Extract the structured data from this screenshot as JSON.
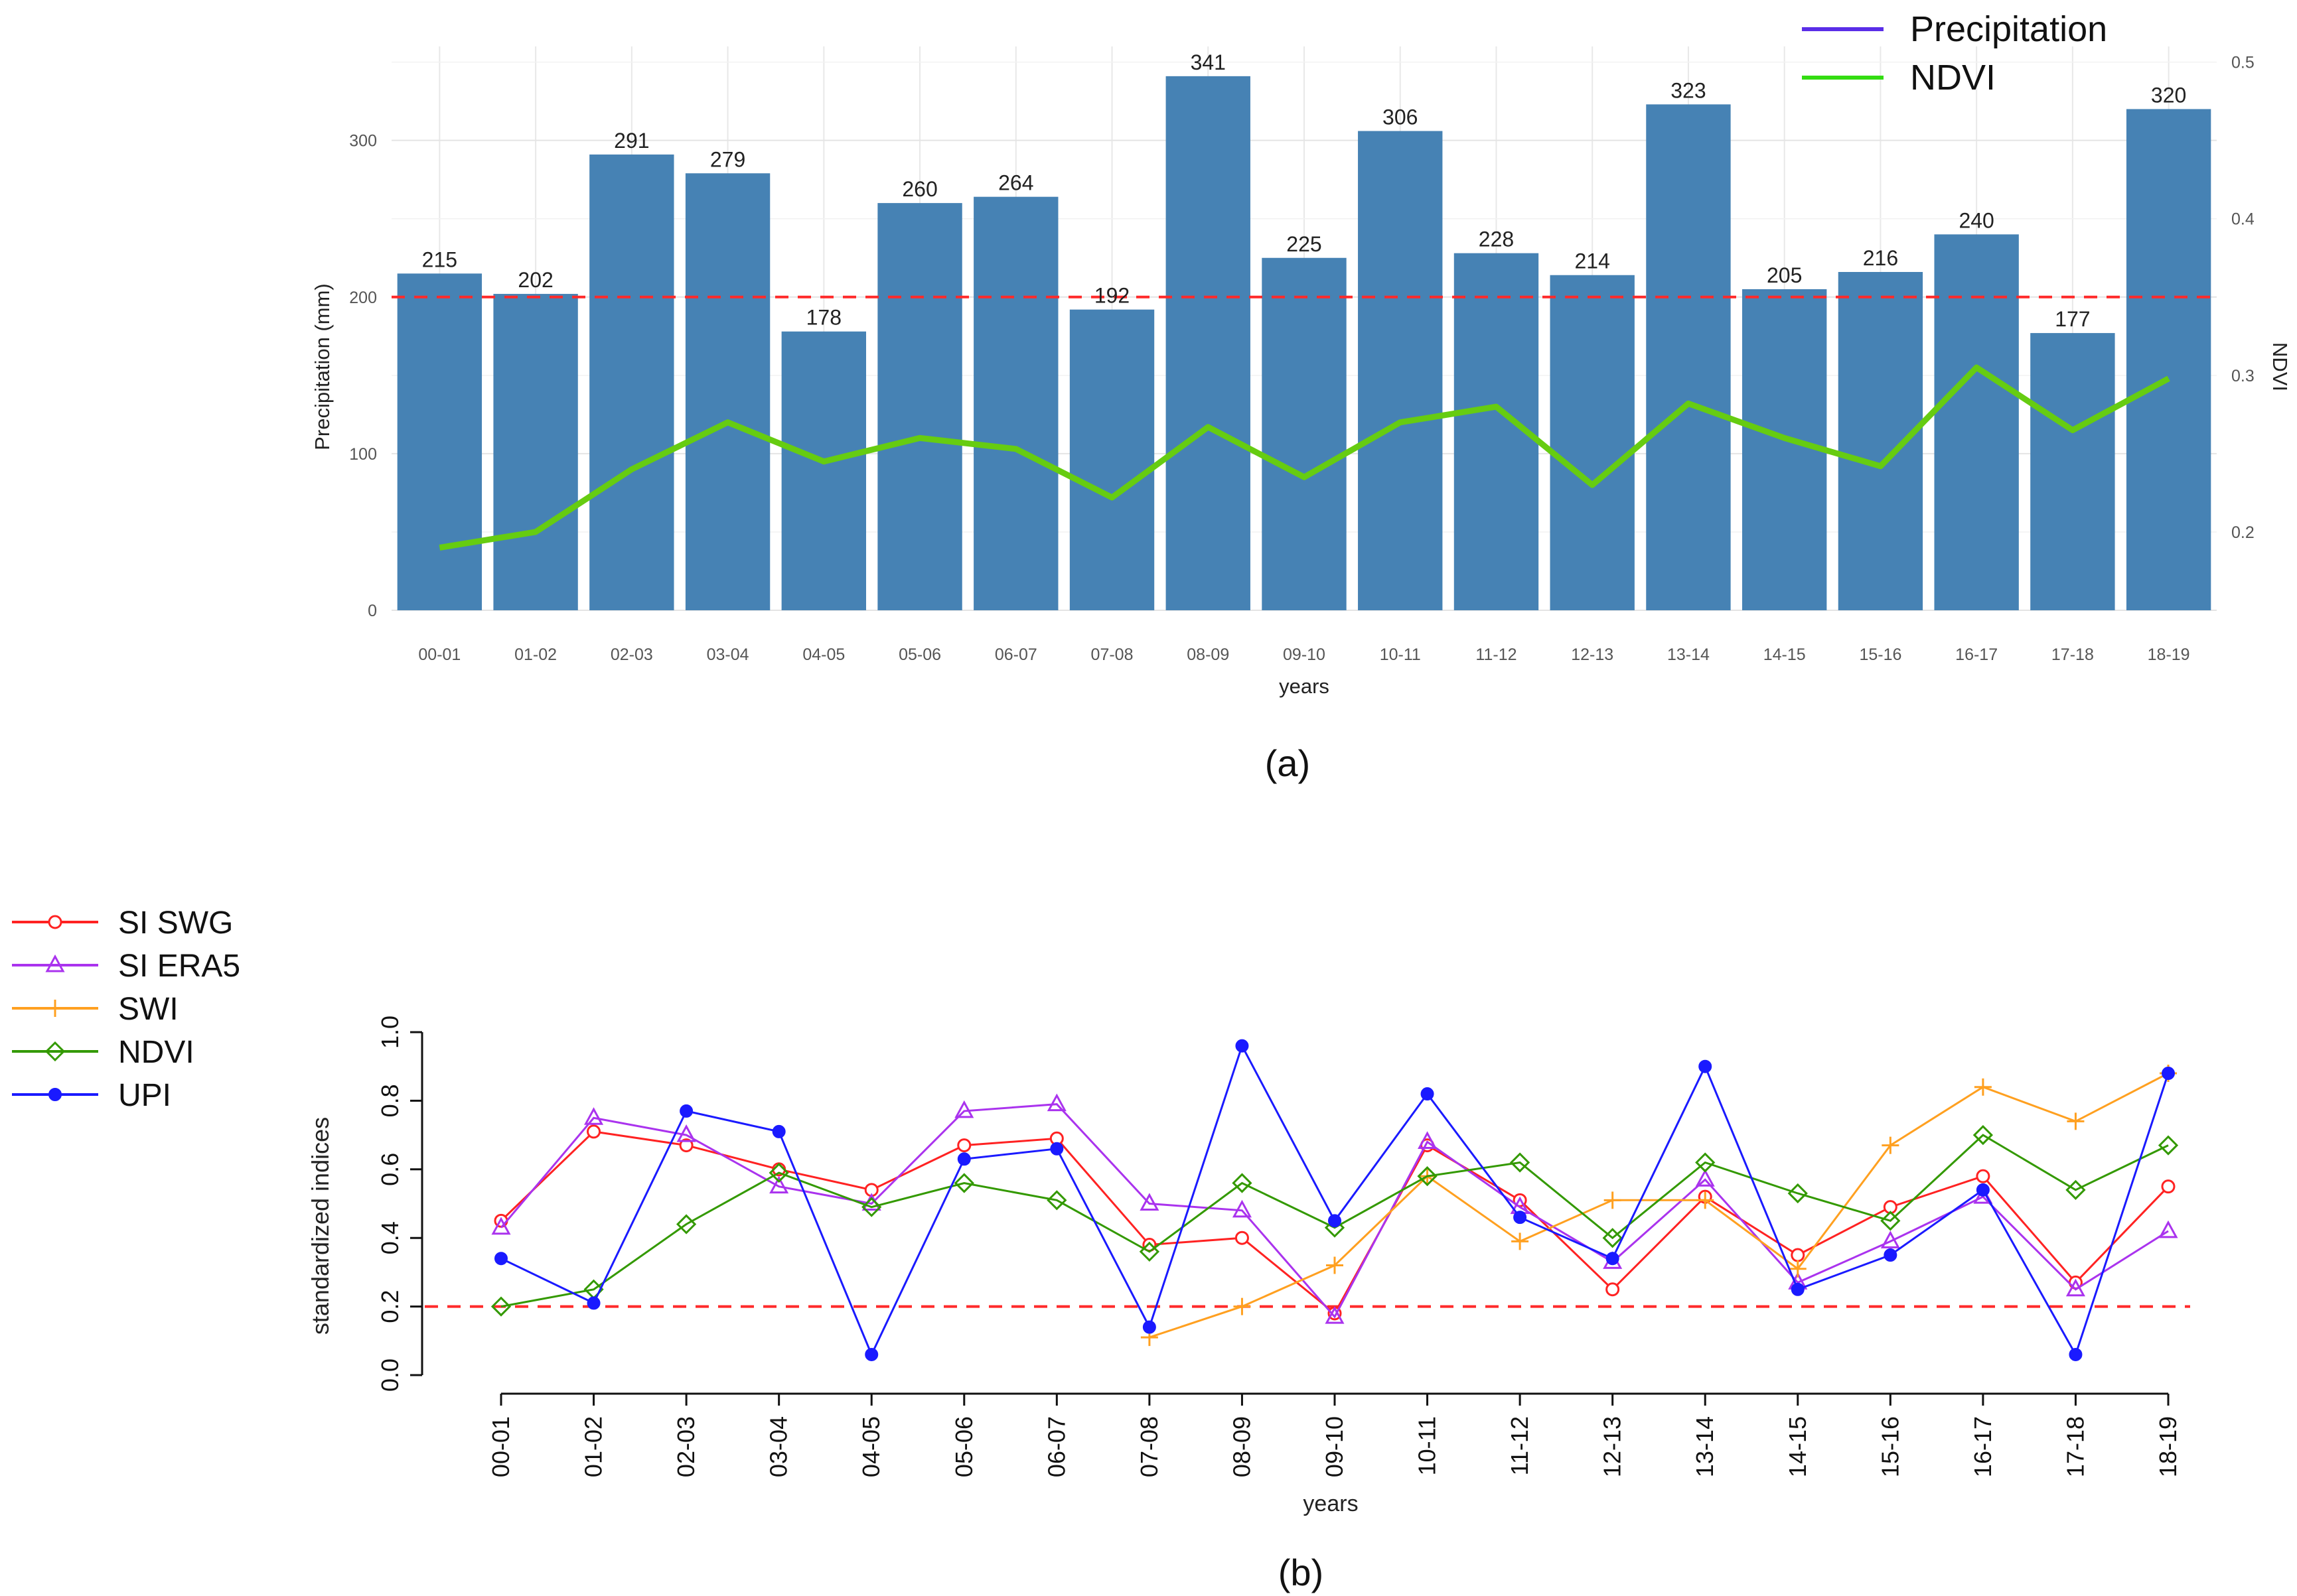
{
  "chart_data": [
    {
      "type": "bar",
      "panel_label": "(a)",
      "categories": [
        "00-01",
        "01-02",
        "02-03",
        "03-04",
        "04-05",
        "05-06",
        "06-07",
        "07-08",
        "08-09",
        "09-10",
        "10-11",
        "11-12",
        "12-13",
        "13-14",
        "14-15",
        "15-16",
        "16-17",
        "17-18",
        "18-19"
      ],
      "xlabel": "years",
      "ylabel": "Precipitation (mm)",
      "y2label": "NDVI",
      "ylim": [
        0,
        360
      ],
      "yticks": [
        "0",
        "100",
        "200",
        "300"
      ],
      "y2lim": [
        0.15,
        0.51
      ],
      "y2ticks": [
        "0.2",
        "0.3",
        "0.4",
        "0.5"
      ],
      "threshold": 200,
      "grid": true,
      "series": [
        {
          "name": "Precipitation",
          "kind": "bar",
          "color": "#4682B4",
          "legend_color": "#5a2ee8",
          "values": [
            215,
            202,
            291,
            279,
            178,
            260,
            264,
            192,
            341,
            225,
            306,
            228,
            214,
            323,
            205,
            216,
            240,
            177,
            320
          ]
        },
        {
          "name": "NDVI",
          "kind": "line",
          "axis": "right",
          "color": "#66cc11",
          "legend_color": "#33dd11",
          "values": [
            0.19,
            0.2,
            0.24,
            0.27,
            0.245,
            0.26,
            0.253,
            0.222,
            0.267,
            0.235,
            0.27,
            0.28,
            0.23,
            0.282,
            0.26,
            0.242,
            0.305,
            0.265,
            0.298
          ]
        }
      ],
      "data_labels": [
        "215",
        "202",
        "291",
        "279",
        "178",
        "260",
        "264",
        "192",
        "341",
        "225",
        "306",
        "228",
        "214",
        "323",
        "205",
        "216",
        "240",
        "177",
        "320"
      ],
      "legend": [
        "Precipitation",
        "NDVI"
      ],
      "legend_position": "top-right"
    },
    {
      "type": "line",
      "panel_label": "(b)",
      "categories": [
        "00-01",
        "01-02",
        "02-03",
        "03-04",
        "04-05",
        "05-06",
        "06-07",
        "07-08",
        "08-09",
        "09-10",
        "10-11",
        "11-12",
        "12-13",
        "13-14",
        "14-15",
        "15-16",
        "16-17",
        "17-18",
        "18-19"
      ],
      "xlabel": "years",
      "ylabel": "standardized indices",
      "ylim": [
        0,
        1
      ],
      "yticks": [
        "0.0",
        "0.2",
        "0.4",
        "0.6",
        "0.8",
        "1.0"
      ],
      "threshold": 0.2,
      "series": [
        {
          "name": "SI SWG",
          "color": "#ff2222",
          "marker": "circle",
          "values": [
            0.45,
            0.71,
            0.67,
            0.6,
            0.54,
            0.67,
            0.69,
            0.38,
            0.4,
            0.18,
            0.67,
            0.51,
            0.25,
            0.52,
            0.35,
            0.49,
            0.58,
            0.27,
            0.55
          ]
        },
        {
          "name": "SI ERA5",
          "color": "#aa33ee",
          "marker": "triangle",
          "values": [
            0.43,
            0.75,
            0.7,
            0.55,
            0.5,
            0.77,
            0.79,
            0.5,
            0.48,
            0.17,
            0.68,
            0.49,
            0.33,
            0.57,
            0.27,
            0.39,
            0.52,
            0.25,
            0.42
          ]
        },
        {
          "name": "SWI",
          "color": "#ffa020",
          "marker": "plus",
          "values": [
            null,
            null,
            null,
            null,
            null,
            null,
            null,
            0.11,
            0.2,
            0.32,
            0.58,
            0.39,
            0.51,
            0.51,
            0.31,
            0.67,
            0.84,
            0.74,
            0.88
          ]
        },
        {
          "name": "NDVI",
          "color": "#339900",
          "marker": "diamond",
          "values": [
            0.2,
            0.25,
            0.44,
            0.59,
            0.49,
            0.56,
            0.51,
            0.36,
            0.56,
            0.43,
            0.58,
            0.62,
            0.4,
            0.62,
            0.53,
            0.45,
            0.7,
            0.54,
            0.67
          ]
        },
        {
          "name": "UPI",
          "color": "#1a1aff",
          "marker": "filled-circle",
          "values": [
            0.34,
            0.21,
            0.77,
            0.71,
            0.06,
            0.63,
            0.66,
            0.14,
            0.96,
            0.45,
            0.82,
            0.46,
            0.34,
            0.9,
            0.25,
            0.35,
            0.54,
            0.06,
            0.88
          ]
        }
      ],
      "legend": [
        "SI SWG",
        "SI ERA5",
        "SWI",
        "NDVI",
        "UPI"
      ],
      "legend_position": "left"
    }
  ]
}
